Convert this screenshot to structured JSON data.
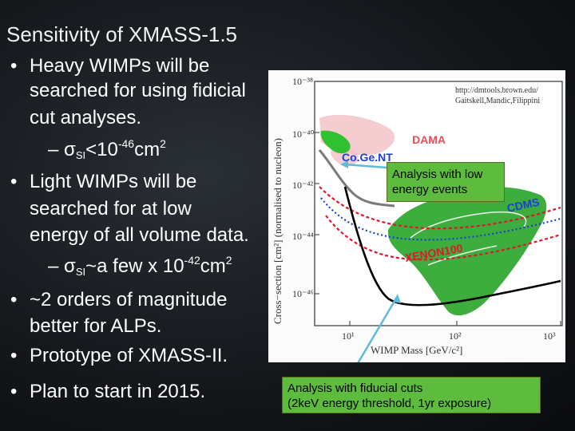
{
  "slide": {
    "title": "Sensitivity of XMASS-1.5"
  },
  "bullets": {
    "b1_line1": "Heavy WIMPs will be",
    "b1_line2": "searched for using fidicial",
    "b1_line3": "cut analyses.",
    "sub1_prefix": "– σ",
    "sub1_subscript": "SI",
    "sub1_rest": "<10",
    "sub1_exp": "-46",
    "sub1_unit": "cm",
    "sub1_unit_exp": "2",
    "b2_line1": "Light WIMPs will be",
    "b2_line2": "searched for at low",
    "b2_line3": "energy of all volume data.",
    "sub2_prefix": "– σ",
    "sub2_subscript": "SI",
    "sub2_rest": "~a few x 10",
    "sub2_exp": "-42",
    "sub2_unit": "cm",
    "sub2_unit_exp": "2",
    "b3_line1": "~2 orders of magnitude",
    "b3_line2": "better for ALPs.",
    "b4_line1": "Prototype of XMASS-II.",
    "b5_line1": "Plan to start in 2015.",
    "bullet_glyph": "•"
  },
  "plot": {
    "y_axis_label": "Cross−section [cm²] (normalised to nucleon)",
    "x_axis_label": "WIMP Mass [GeV/c²]",
    "y_ticks": [
      "10⁻³⁸",
      "10⁻⁴⁰",
      "10⁻⁴²",
      "10⁻⁴⁴",
      "10⁻⁴⁶"
    ],
    "x_ticks": [
      "10¹",
      "10²",
      "10³"
    ],
    "source_line1": "http://dmtools.brown.edu/",
    "source_line2": "Gaitskell,Mandic,Filippini",
    "labels": {
      "dama": "DAMA",
      "cogent": "Co.Ge.NT",
      "cdms": "CDMS",
      "xenon": "XENON100"
    },
    "colors": {
      "dama": "#e8505a",
      "cogent": "#2fc12f",
      "cdms": "#1a3fd6",
      "xenon": "#e2162a",
      "xmass": "#000000",
      "green_region": "#3dad3d",
      "arrow": "#5fbbd8"
    }
  },
  "callouts": {
    "low_line1": "Analysis with low",
    "low_line2": "energy events",
    "fid_line1": "Analysis with fiducial cuts",
    "fid_line2": "(2keV energy threshold, 1yr exposure)"
  }
}
